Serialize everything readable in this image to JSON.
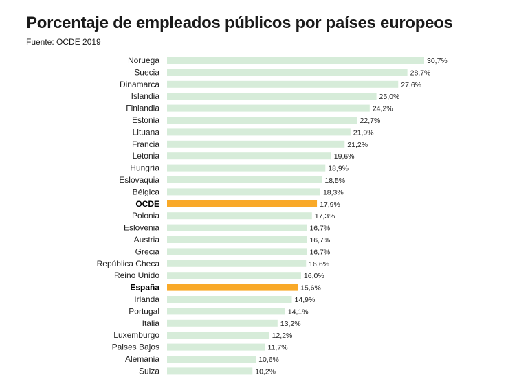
{
  "chart_data": {
    "type": "bar",
    "orientation": "horizontal",
    "title": "Porcentaje de empleados públicos por países europeos",
    "subtitle": "Fuente: OCDE 2019",
    "xlabel": "",
    "ylabel": "",
    "grid": false,
    "value_format": "percent-comma",
    "xlim": [
      0,
      30.7
    ],
    "colors": {
      "default": "#d6ecd9",
      "highlight": "#f9a928"
    },
    "highlighted": [
      "OCDE",
      "España"
    ],
    "categories": [
      "Noruega",
      "Suecia",
      "Dinamarca",
      "Islandia",
      "Finlandia",
      "Estonia",
      "Lituana",
      "Francia",
      "Letonia",
      "Hungría",
      "Eslovaquia",
      "Bélgica",
      "OCDE",
      "Polonia",
      "Eslovenia",
      "Austria",
      "Grecia",
      "República Checa",
      "Reino Unido",
      "España",
      "Irlanda",
      "Portugal",
      "Italia",
      "Luxemburgo",
      "Paises Bajos",
      "Alemania",
      "Suiza"
    ],
    "values": [
      30.7,
      28.7,
      27.6,
      25.0,
      24.2,
      22.7,
      21.9,
      21.2,
      19.6,
      18.9,
      18.5,
      18.3,
      17.9,
      17.3,
      16.7,
      16.7,
      16.7,
      16.6,
      16.0,
      15.6,
      14.9,
      14.1,
      13.2,
      12.2,
      11.7,
      10.6,
      10.2
    ],
    "value_labels": [
      "30,7%",
      "28,7%",
      "27,6%",
      "25,0%",
      "24,2%",
      "22,7%",
      "21,9%",
      "21,2%",
      "19,6%",
      "18,9%",
      "18,5%",
      "18,3%",
      "17,9%",
      "17,3%",
      "16,7%",
      "16,7%",
      "16,7%",
      "16,6%",
      "16,0%",
      "15,6%",
      "14,9%",
      "14,1%",
      "13,2%",
      "12,2%",
      "11,7%",
      "10,6%",
      "10,2%"
    ]
  }
}
